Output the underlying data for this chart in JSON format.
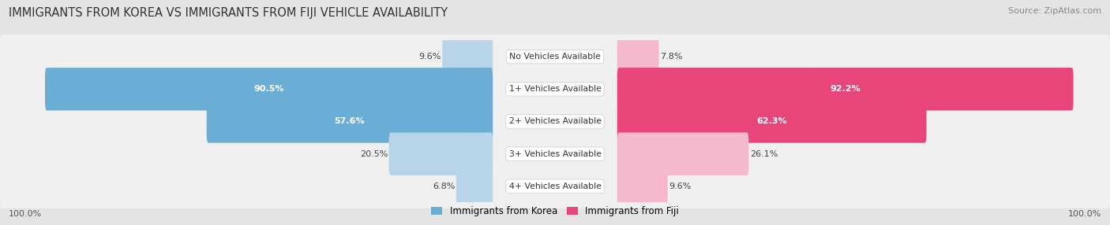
{
  "title": "IMMIGRANTS FROM KOREA VS IMMIGRANTS FROM FIJI VEHICLE AVAILABILITY",
  "source": "Source: ZipAtlas.com",
  "categories": [
    "No Vehicles Available",
    "1+ Vehicles Available",
    "2+ Vehicles Available",
    "3+ Vehicles Available",
    "4+ Vehicles Available"
  ],
  "korea_values": [
    9.6,
    90.5,
    57.6,
    20.5,
    6.8
  ],
  "fiji_values": [
    7.8,
    92.2,
    62.3,
    26.1,
    9.6
  ],
  "korea_color_light": "#b8d4e8",
  "korea_color_dark": "#6aaed6",
  "fiji_color_light": "#f5b8cc",
  "fiji_color_dark": "#e8457a",
  "korea_label": "Immigrants from Korea",
  "fiji_label": "Immigrants from Fiji",
  "background_color": "#e4e4e4",
  "row_bg_color": "#f0f0f0",
  "title_fontsize": 10.5,
  "source_fontsize": 8,
  "value_fontsize": 8,
  "cat_fontsize": 7.8,
  "large_threshold": 40,
  "max_val": 100
}
